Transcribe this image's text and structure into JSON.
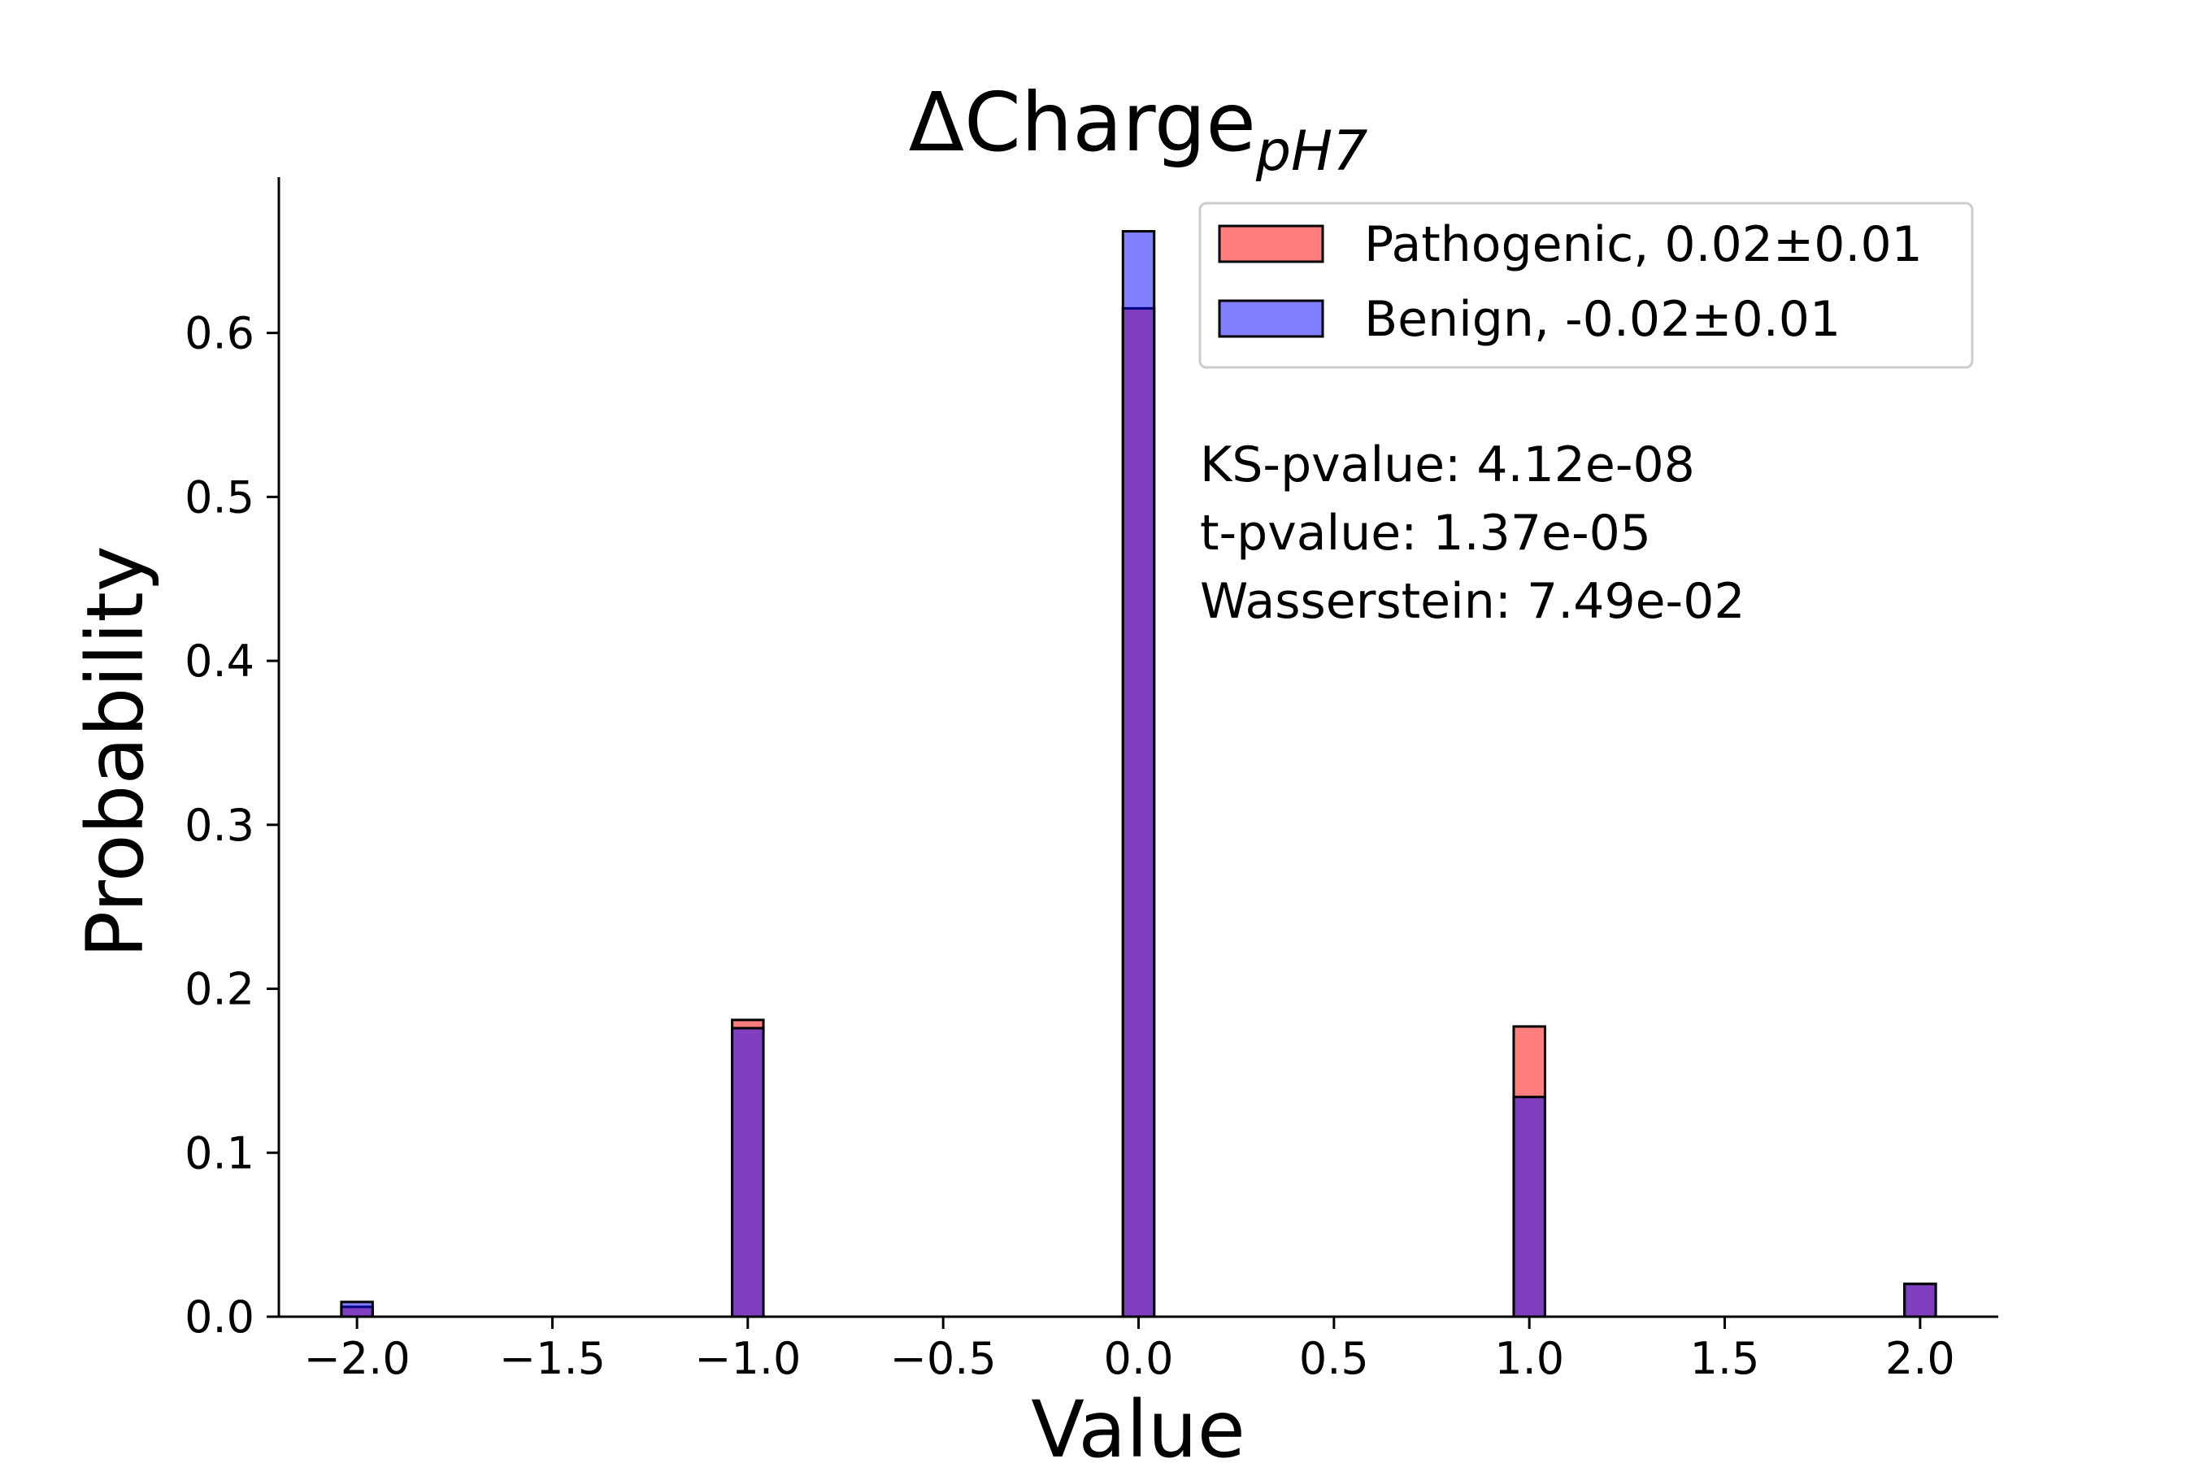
{
  "chart_data": {
    "type": "bar",
    "title": {
      "main": "ΔCharge",
      "subscript": "pH7"
    },
    "xlabel": "Value",
    "ylabel": "Probability",
    "xlim": [
      -2.2,
      2.2
    ],
    "ylim": [
      0,
      0.695
    ],
    "xticks": [
      -2.0,
      -1.5,
      -1.0,
      -0.5,
      0.0,
      0.5,
      1.0,
      1.5,
      2.0
    ],
    "xtick_labels": [
      "−2.0",
      "−1.5",
      "−1.0",
      "−0.5",
      "0.0",
      "0.5",
      "1.0",
      "1.5",
      "2.0"
    ],
    "yticks": [
      0.0,
      0.1,
      0.2,
      0.3,
      0.4,
      0.5,
      0.6
    ],
    "ytick_labels": [
      "0.0",
      "0.1",
      "0.2",
      "0.3",
      "0.4",
      "0.5",
      "0.6"
    ],
    "bin_width": 0.08,
    "x": [
      -2.0,
      -1.0,
      0.0,
      1.0,
      2.0
    ],
    "series": [
      {
        "name": "Pathogenic, 0.02±0.01",
        "color": "#ff0000",
        "alpha": 0.5,
        "values": [
          0.006,
          0.181,
          0.615,
          0.177,
          0.02
        ]
      },
      {
        "name": "Benign, -0.02±0.01",
        "color": "#0000ff",
        "alpha": 0.5,
        "values": [
          0.009,
          0.176,
          0.662,
          0.134,
          0.02
        ]
      }
    ],
    "legend_position": "top-right",
    "annotations": [
      "KS-pvalue: 4.12e-08",
      "t-pvalue: 1.37e-05",
      "Wasserstein: 7.49e-02"
    ],
    "grid": false
  }
}
